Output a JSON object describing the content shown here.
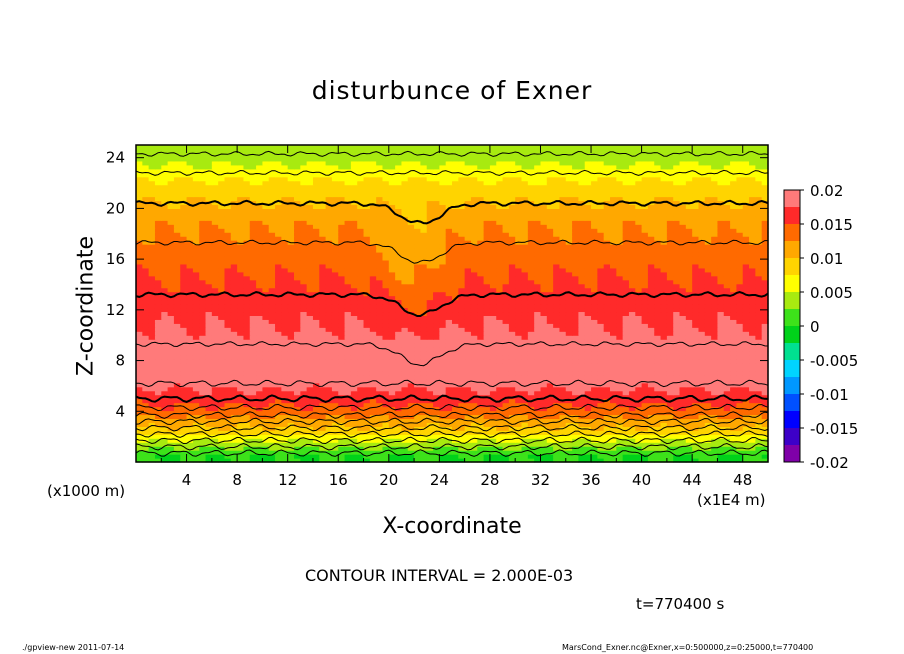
{
  "chart_data": {
    "type": "heatmap",
    "title": "disturbunce of Exner",
    "xlabel": "X-coordinate",
    "ylabel": "Z-coordinate",
    "x_unit_label": "(x1E4 m)",
    "y_unit_label": "(x1000 m)",
    "xlim": [
      0,
      50
    ],
    "ylim": [
      0,
      25
    ],
    "x_ticks": [
      "4",
      "8",
      "12",
      "16",
      "20",
      "24",
      "28",
      "32",
      "36",
      "40",
      "44",
      "48"
    ],
    "y_ticks": [
      "4",
      "8",
      "12",
      "16",
      "20",
      "24"
    ],
    "colorbar": {
      "ticks": [
        "0.02",
        "0.015",
        "0.01",
        "0.005",
        "0",
        "-0.005",
        "-0.01",
        "-0.015",
        "-0.02"
      ],
      "range": [
        -0.02,
        0.02
      ]
    },
    "contour_interval_text": "CONTOUR INTERVAL = 2.000E-03",
    "vertical_profile": [
      {
        "z": 0.5,
        "value": 0.0
      },
      {
        "z": 1.5,
        "value": 0.004
      },
      {
        "z": 2.5,
        "value": 0.009
      },
      {
        "z": 4.0,
        "value": 0.014
      },
      {
        "z": 5.0,
        "value": 0.016
      },
      {
        "z": 6.5,
        "value": 0.019
      },
      {
        "z": 8.0,
        "value": 0.02
      },
      {
        "z": 10.0,
        "value": 0.018
      },
      {
        "z": 13.0,
        "value": 0.016
      },
      {
        "z": 16.0,
        "value": 0.014
      },
      {
        "z": 19.0,
        "value": 0.012
      },
      {
        "z": 22.0,
        "value": 0.008
      },
      {
        "z": 24.0,
        "value": 0.004
      }
    ]
  },
  "annotations": {
    "time": "t=770400 s",
    "footer_left": "./gpview-new   2011-07-14",
    "footer_right": "MarsCond_Exner.nc@Exner,x=0:500000,z=0:25000,t=770400"
  }
}
